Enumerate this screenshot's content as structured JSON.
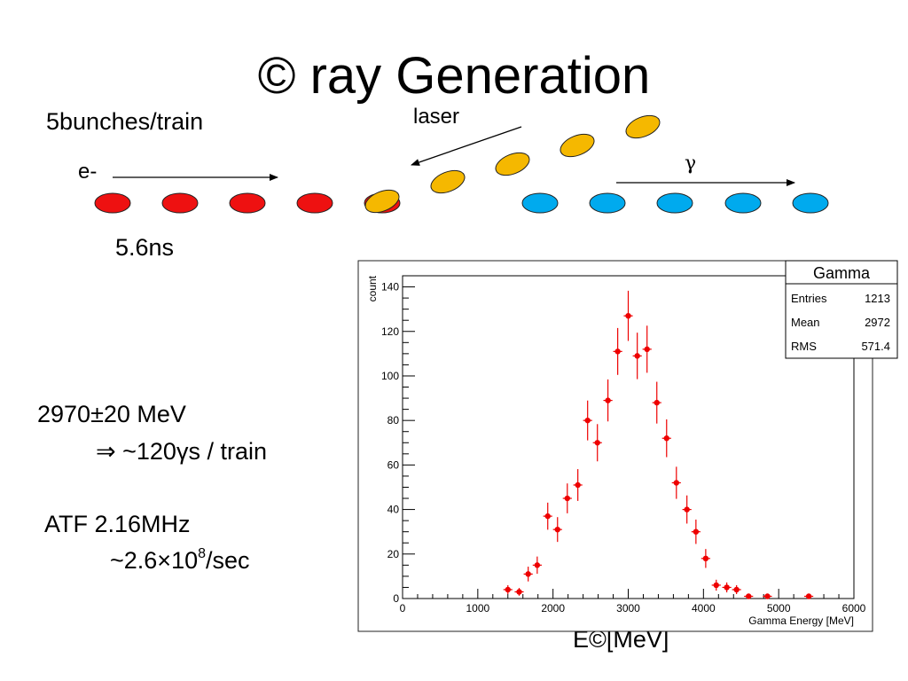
{
  "slide": {
    "title": "© ray Generation",
    "bunch_label": "5bunches/train",
    "laser_label": "laser",
    "electron_label": "e-",
    "gamma_symbol": "γ",
    "spacing_label": "5.6ns",
    "energy_line": "2970±20 MeV",
    "per_train_line": "⇒  ~120γs / train",
    "atf_line": "ATF  2.16MHz",
    "rate_prefix": "~2.6×10",
    "rate_exponent": "8",
    "rate_suffix": "/sec",
    "energy_axis_label": "E©[MeV]",
    "colors": {
      "electron": "#ee1111",
      "laser": "#f5b800",
      "gamma": "#00aaee"
    }
  },
  "chart_data": {
    "type": "scatter",
    "title": "",
    "xlabel": "Gamma Energy [MeV]",
    "ylabel": "count",
    "xlim": [
      0,
      6000
    ],
    "ylim": [
      0,
      145
    ],
    "xticks": [
      0,
      1000,
      2000,
      3000,
      4000,
      5000,
      6000
    ],
    "yticks": [
      0,
      20,
      40,
      60,
      80,
      100,
      120,
      140
    ],
    "marker_color": "#ee0000",
    "x": [
      1400,
      1550,
      1670,
      1790,
      1930,
      2060,
      2190,
      2330,
      2460,
      2590,
      2730,
      2860,
      3000,
      3120,
      3250,
      3380,
      3510,
      3640,
      3780,
      3900,
      4030,
      4170,
      4310,
      4440,
      4600,
      4850,
      5400
    ],
    "y": [
      4,
      3,
      11,
      15,
      37,
      31,
      45,
      51,
      80,
      70,
      89,
      111,
      127,
      109,
      112,
      88,
      72,
      52,
      40,
      30,
      18,
      6,
      5,
      4,
      1,
      1,
      1
    ],
    "stats_box": {
      "title": "Gamma",
      "rows": [
        {
          "label": "Entries",
          "value": "1213"
        },
        {
          "label": "Mean",
          "value": "2972"
        },
        {
          "label": "RMS",
          "value": "571.4"
        }
      ]
    }
  }
}
